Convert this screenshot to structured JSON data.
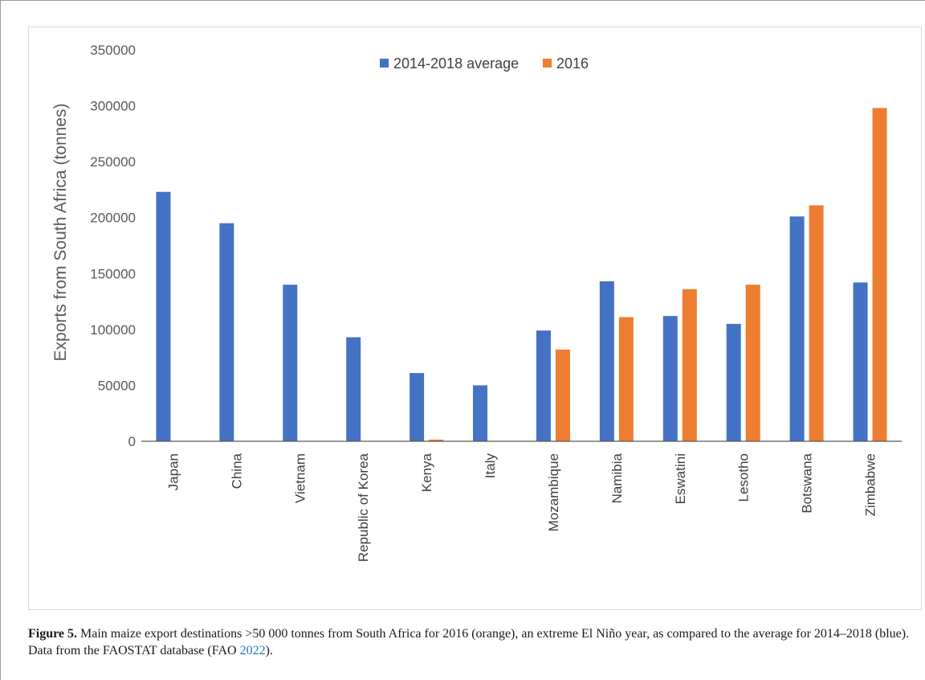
{
  "chart_data": {
    "type": "bar",
    "title": "",
    "xlabel": "",
    "ylabel": "Exports from South Africa (tonnes)",
    "ylim": [
      0,
      350000
    ],
    "yticks": [
      "0",
      "50000",
      "100000",
      "150000",
      "200000",
      "250000",
      "300000",
      "350000"
    ],
    "grid": false,
    "legend_position": "top-center",
    "categories": [
      "Japan",
      "China",
      "Vietnam",
      "Republic of Korea",
      "Kenya",
      "Italy",
      "Mozambique",
      "Namibia",
      "Eswatini",
      "Lesotho",
      "Botswana",
      "Zimbabwe"
    ],
    "series": [
      {
        "name": "2014-2018 average",
        "color": "#4472c4",
        "values": [
          223000,
          195000,
          140000,
          93000,
          61000,
          50000,
          99000,
          143000,
          112000,
          105000,
          201000,
          142000
        ]
      },
      {
        "name": "2016",
        "color": "#ed7d31",
        "values": [
          0,
          0,
          0,
          0,
          1500,
          0,
          82000,
          111000,
          136000,
          140000,
          211000,
          298000
        ]
      }
    ]
  },
  "caption": {
    "label": "Figure 5.",
    "text": " Main maize export destinations >50 000 tonnes from South Africa for 2016 (orange), an extreme El Niño year, as compared to the average for 2014–2018 (blue). Data from the FAOSTAT database (FAO ",
    "ref": "2022",
    "tail": ")."
  }
}
